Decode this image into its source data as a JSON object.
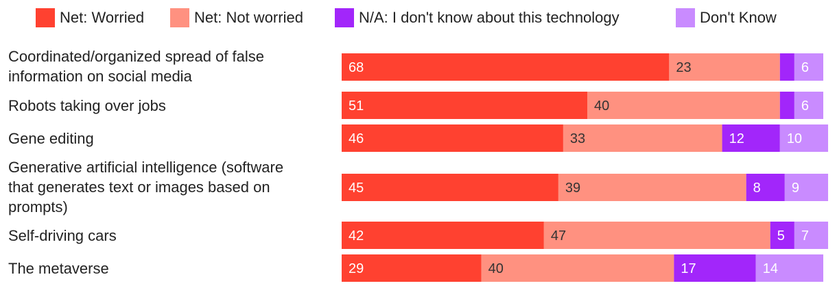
{
  "chart_data": {
    "type": "bar",
    "orientation": "horizontal",
    "stacked": true,
    "title": "",
    "xlabel": "",
    "ylabel": "",
    "xlim": [
      0,
      100
    ],
    "grid": false,
    "legend_position": "top",
    "categories": [
      [
        "Coordinated/organized spread of false",
        "information on social media"
      ],
      [
        "Robots taking over jobs"
      ],
      [
        "Gene editing"
      ],
      [
        "Generative artificial intelligence (software",
        "that generates text or images based on",
        "prompts)"
      ],
      [
        "Self-driving cars"
      ],
      [
        "The metaverse"
      ]
    ],
    "series": [
      {
        "name": "Net: Worried",
        "color": "#FF4130",
        "label_color": "#ffffff",
        "values": [
          68,
          51,
          46,
          45,
          42,
          29
        ],
        "labels": [
          "68",
          "51",
          "46",
          "45",
          "42",
          "29"
        ]
      },
      {
        "name": "Net: Not worried",
        "color": "#FF9180",
        "label_color": "#333333",
        "values": [
          23,
          40,
          33,
          39,
          47,
          40
        ],
        "labels": [
          "23",
          "40",
          "33",
          "39",
          "47",
          "40"
        ]
      },
      {
        "name": "N/A: I don't know about this technology",
        "color": "#A226FA",
        "label_color": "#ffffff",
        "values": [
          3,
          3,
          12,
          8,
          5,
          17
        ],
        "labels": [
          "",
          "",
          "12",
          "8",
          "5",
          "17"
        ]
      },
      {
        "name": "Don't Know",
        "color": "#C98BFF",
        "label_color": "#ffffff",
        "values": [
          6,
          6,
          10,
          9,
          7,
          14
        ],
        "labels": [
          "6",
          "6",
          "10",
          "9",
          "7",
          "14"
        ]
      }
    ]
  }
}
